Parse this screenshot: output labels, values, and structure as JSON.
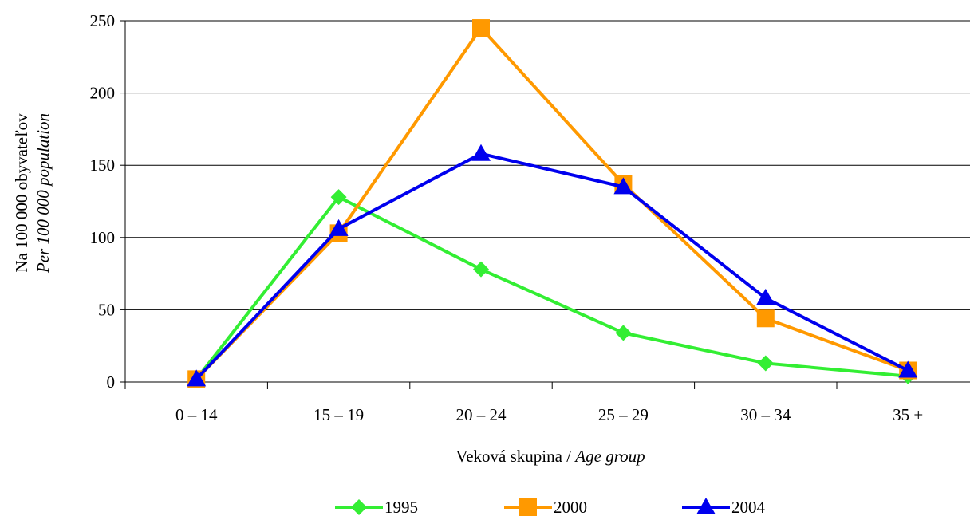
{
  "chart_data": {
    "type": "line",
    "categories": [
      "0 – 14",
      "15 – 19",
      "20 – 24",
      "25 – 29",
      "30 – 34",
      "35 +"
    ],
    "series": [
      {
        "name": "1995",
        "values": [
          2,
          128,
          78,
          34,
          13,
          4
        ],
        "color": "#33ee33",
        "marker": "diamond"
      },
      {
        "name": "2000",
        "values": [
          2,
          103,
          245,
          137,
          44,
          8
        ],
        "color": "#ff9900",
        "marker": "square"
      },
      {
        "name": "2004",
        "values": [
          2,
          106,
          158,
          135,
          58,
          8
        ],
        "color": "#0000ee",
        "marker": "triangle"
      }
    ],
    "ylim": [
      0,
      250
    ],
    "yticks": [
      0,
      50,
      100,
      150,
      200,
      250
    ],
    "xlabel": {
      "main": "Veková skupina / ",
      "italic": "Age group"
    },
    "ylabel": {
      "line1": "Na 100 000 obyvateľov",
      "line2": "Per 100 000 population"
    },
    "grid": "horizontal",
    "legend_position": "bottom"
  }
}
